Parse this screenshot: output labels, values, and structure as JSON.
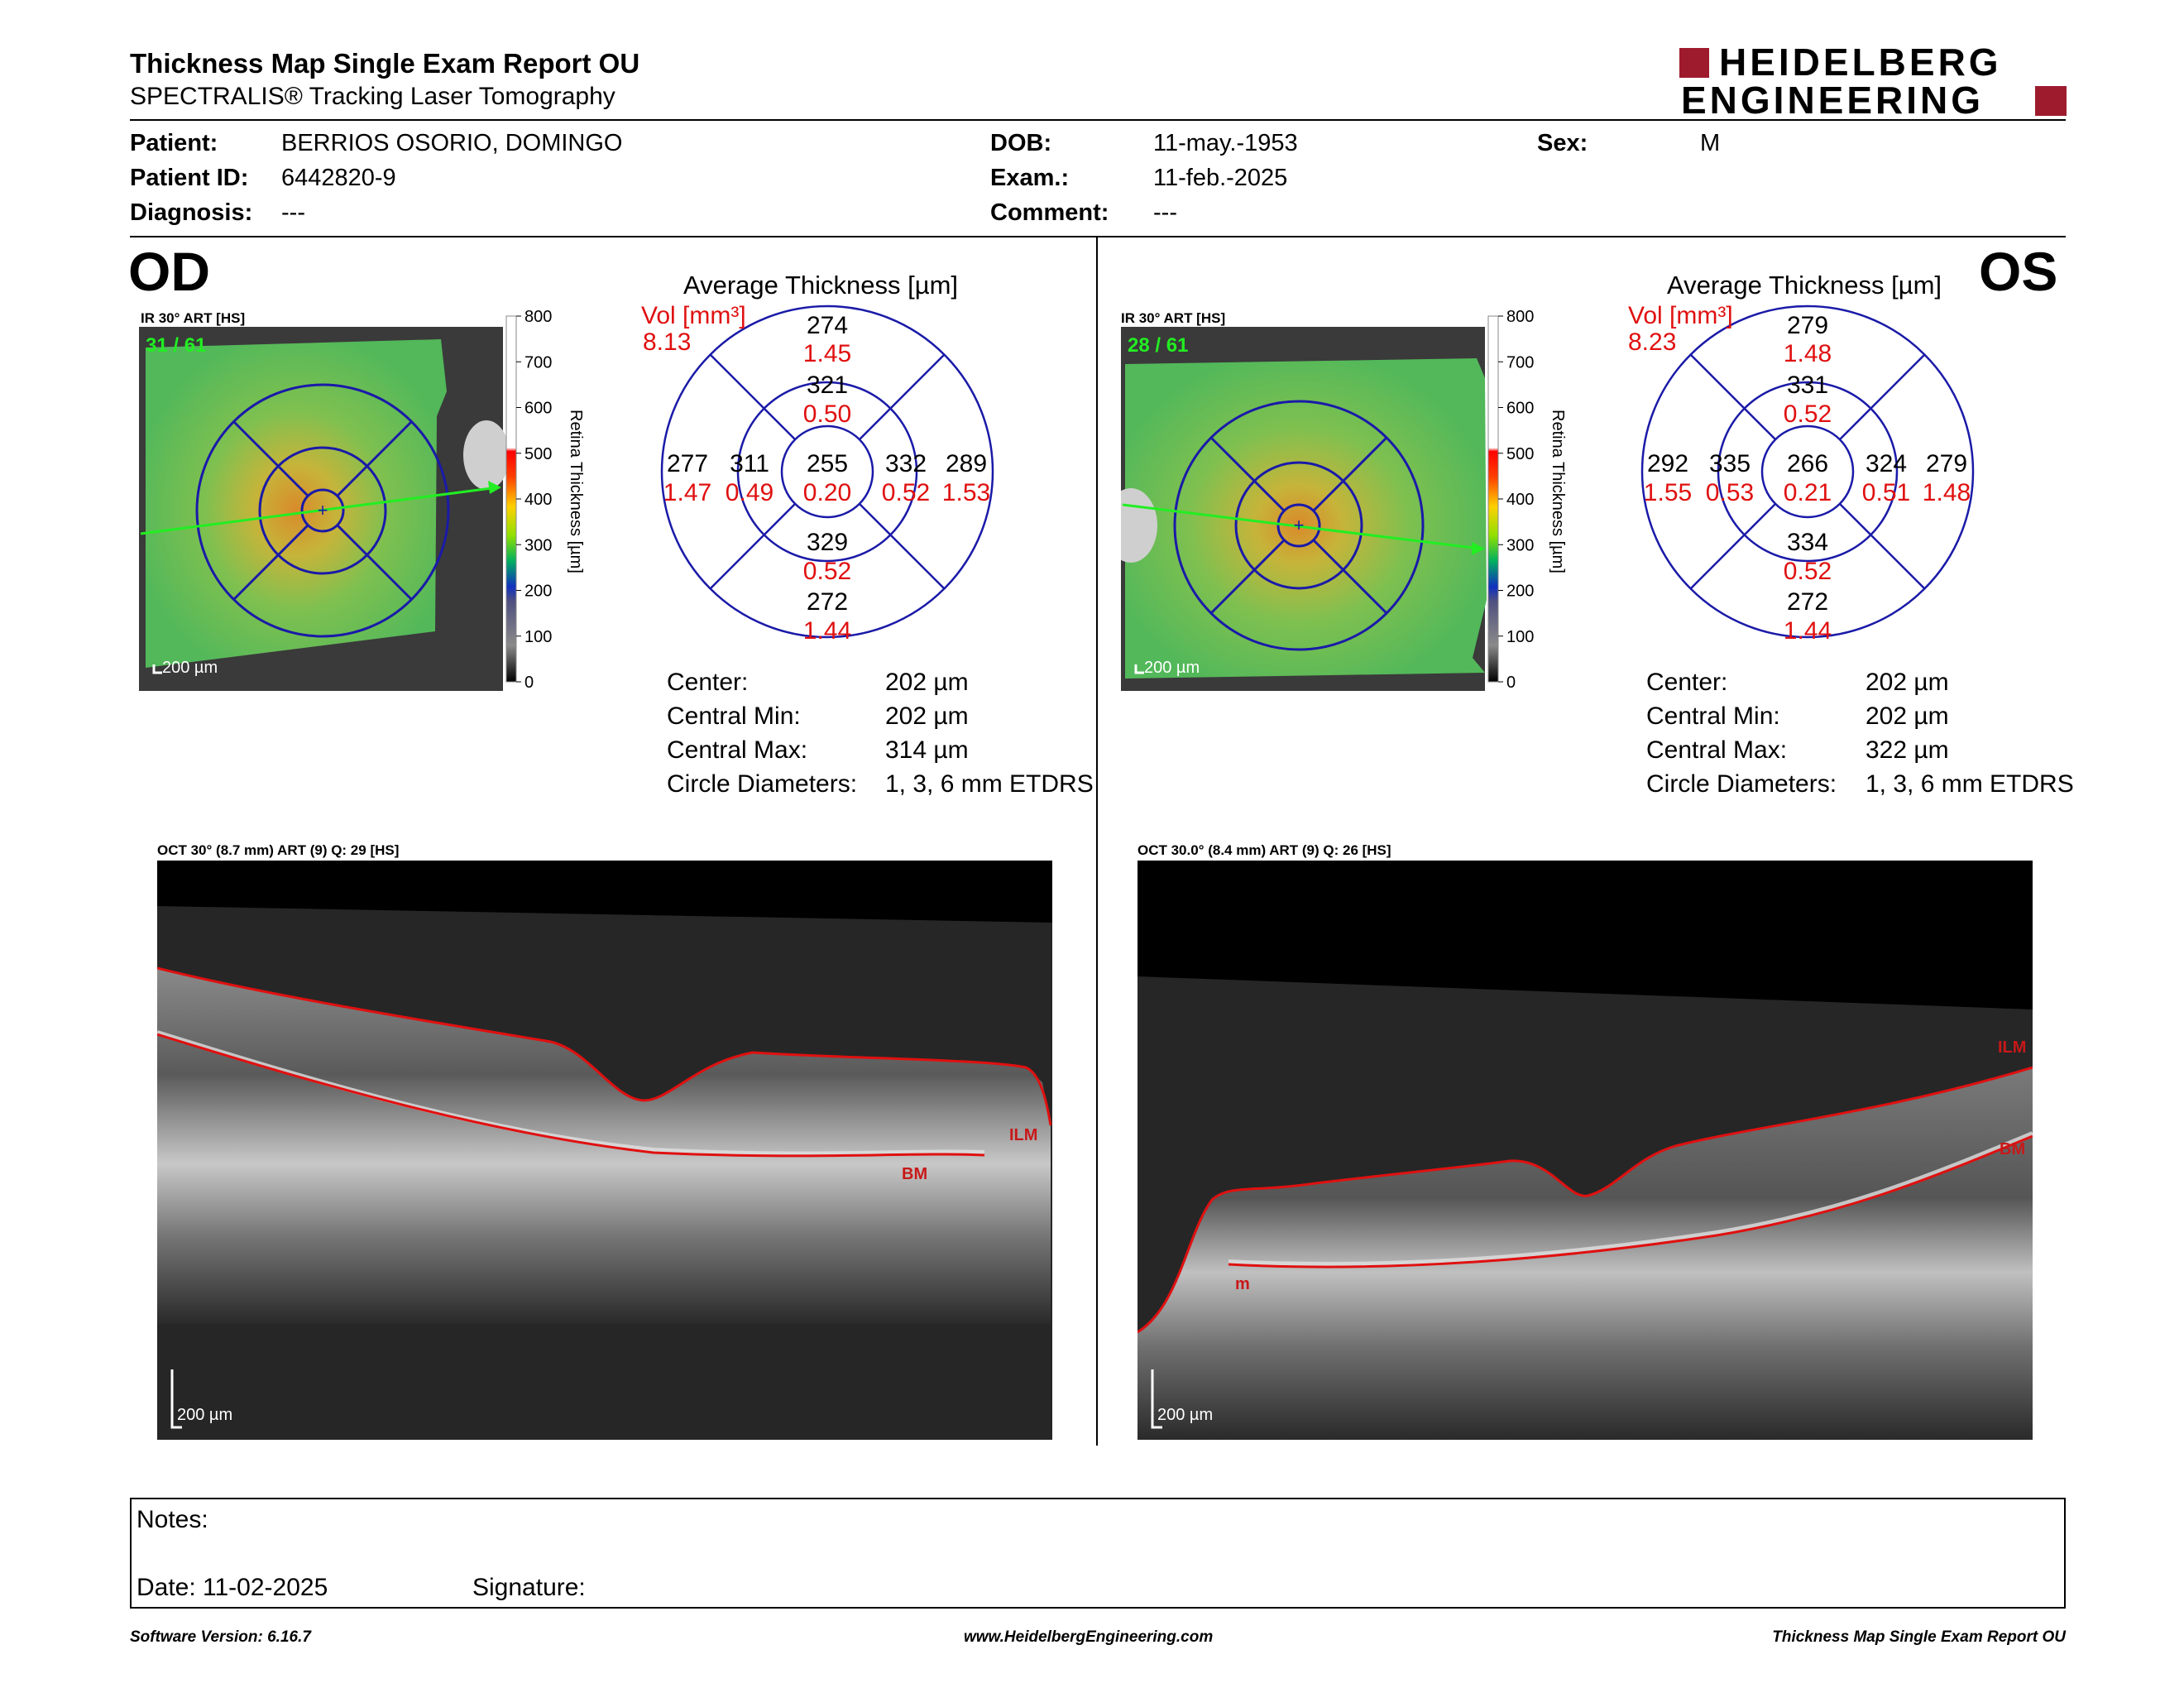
{
  "header": {
    "title": "Thickness Map Single Exam Report OU",
    "subtitle": "SPECTRALIS® Tracking Laser Tomography",
    "logo_line1": "HEIDELBERG",
    "logo_line2": "ENGINEERING"
  },
  "patient": {
    "patient_label": "Patient:",
    "patient_value": "BERRIOS OSORIO, DOMINGO",
    "id_label": "Patient ID:",
    "id_value": "6442820-9",
    "diagnosis_label": "Diagnosis:",
    "diagnosis_value": "---",
    "dob_label": "DOB:",
    "dob_value": "11-may.-1953",
    "exam_label": "Exam.:",
    "exam_value": "11-feb.-2025",
    "comment_label": "Comment:",
    "comment_value": "---",
    "sex_label": "Sex:",
    "sex_value": "M"
  },
  "od": {
    "eye": "OD",
    "ir_label": "IR 30° ART [HS]",
    "frame_count": "31 / 61",
    "scale_label": "200 µm",
    "colorbar_ticks": [
      "800",
      "700",
      "600",
      "500",
      "400",
      "300",
      "200",
      "100",
      "0"
    ],
    "colorbar_title": "Retina Thickness [µm]",
    "chart_title": "Average Thickness [µm]",
    "vol_label": "Vol [mm³]",
    "vol_total": "8.13",
    "sectors": {
      "outer_superior": {
        "thickness": "274",
        "volume": "1.45"
      },
      "inner_superior": {
        "thickness": "321",
        "volume": "0.50"
      },
      "outer_nasal_left": {
        "thickness": "277",
        "volume": "1.47"
      },
      "inner_left": {
        "thickness": "311",
        "volume": "0.49"
      },
      "center": {
        "thickness": "255",
        "volume": "0.20"
      },
      "inner_right": {
        "thickness": "332",
        "volume": "0.52"
      },
      "outer_right": {
        "thickness": "289",
        "volume": "1.53"
      },
      "inner_inferior": {
        "thickness": "329",
        "volume": "0.52"
      },
      "outer_inferior": {
        "thickness": "272",
        "volume": "1.44"
      }
    },
    "stats": [
      {
        "label": "Center:",
        "value": "202 µm"
      },
      {
        "label": "Central Min:",
        "value": "202 µm"
      },
      {
        "label": "Central Max:",
        "value": "314 µm"
      },
      {
        "label": "Circle Diameters:",
        "value": "1, 3, 6 mm ETDRS"
      }
    ],
    "oct_label": "OCT 30° (8.7 mm) ART (9) Q: 29 [HS]",
    "oct_scale": "200 µm",
    "ilm_label": "ILM",
    "bm_label": "BM"
  },
  "os": {
    "eye": "OS",
    "ir_label": "IR 30° ART [HS]",
    "frame_count": "28 / 61",
    "scale_label": "200 µm",
    "colorbar_ticks": [
      "800",
      "700",
      "600",
      "500",
      "400",
      "300",
      "200",
      "100",
      "0"
    ],
    "colorbar_title": "Retina Thickness [µm]",
    "chart_title": "Average Thickness [µm]",
    "vol_label": "Vol [mm³]",
    "vol_total": "8.23",
    "sectors": {
      "outer_superior": {
        "thickness": "279",
        "volume": "1.48"
      },
      "inner_superior": {
        "thickness": "331",
        "volume": "0.52"
      },
      "outer_nasal_left": {
        "thickness": "292",
        "volume": "1.55"
      },
      "inner_left": {
        "thickness": "335",
        "volume": "0.53"
      },
      "center": {
        "thickness": "266",
        "volume": "0.21"
      },
      "inner_right": {
        "thickness": "324",
        "volume": "0.51"
      },
      "outer_right": {
        "thickness": "279",
        "volume": "1.48"
      },
      "inner_inferior": {
        "thickness": "334",
        "volume": "0.52"
      },
      "outer_inferior": {
        "thickness": "272",
        "volume": "1.44"
      }
    },
    "stats": [
      {
        "label": "Center:",
        "value": "202 µm"
      },
      {
        "label": "Central Min:",
        "value": "202 µm"
      },
      {
        "label": "Central Max:",
        "value": "322 µm"
      },
      {
        "label": "Circle Diameters:",
        "value": "1, 3, 6 mm ETDRS"
      }
    ],
    "oct_label": "OCT 30.0° (8.4 mm) ART (9) Q: 26 [HS]",
    "oct_scale": "200 µm",
    "ilm_label": "ILM",
    "bm_label": "BM",
    "bm_partial_label": "m"
  },
  "notes": {
    "notes_label": "Notes:",
    "date_label": "Date: 11-02-2025",
    "signature_label": "Signature:"
  },
  "footer": {
    "software": "Software Version: 6.16.7",
    "website": "www.HeidelbergEngineering.com",
    "report": "Thickness Map Single Exam Report OU"
  },
  "colors": {
    "ring_blue": "#1a1aa8",
    "red": "#e01010",
    "logo_red": "#9e1b2e",
    "tracking_green": "#22ee22"
  }
}
